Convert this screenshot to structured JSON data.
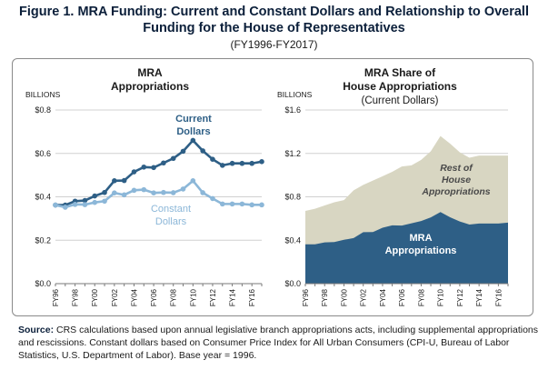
{
  "figure": {
    "title": "Figure 1. MRA Funding: Current and Constant Dollars and Relationship to Overall Funding for the House of Representatives",
    "subtitle": "(FY1996-FY2017)",
    "source_label": "Source:",
    "source_text": "CRS calculations based upon annual legislative branch appropriations acts, including supplemental appropriations and rescissions. Constant dollars based on Consumer Price Index for All Urban Consumers (CPI-U, Bureau of Labor Statistics, U.S. Department of Labor). Base year = 1996."
  },
  "chart_data": [
    {
      "type": "line",
      "title": "MRA Appropriations",
      "ylabel": "BILLIONS",
      "ylim": [
        0,
        0.8
      ],
      "yticks": [
        "$0.0",
        "$0.2",
        "$0.4",
        "$0.6",
        "$0.8"
      ],
      "x": [
        "FY96",
        "FY97",
        "FY98",
        "FY99",
        "FY00",
        "FY01",
        "FY02",
        "FY03",
        "FY04",
        "FY05",
        "FY06",
        "FY07",
        "FY08",
        "FY09",
        "FY10",
        "FY11",
        "FY12",
        "FY13",
        "FY14",
        "FY15",
        "FY16",
        "FY17"
      ],
      "xtick_labels": [
        "FY96",
        "FY98",
        "FY00",
        "FY02",
        "FY04",
        "FY06",
        "FY08",
        "FY10",
        "FY12",
        "FY14",
        "FY16"
      ],
      "series": [
        {
          "name": "Current Dollars",
          "color": "#2e5f86",
          "values": [
            0.362,
            0.362,
            0.38,
            0.383,
            0.404,
            0.42,
            0.474,
            0.475,
            0.515,
            0.537,
            0.535,
            0.556,
            0.577,
            0.61,
            0.66,
            0.612,
            0.573,
            0.545,
            0.554,
            0.554,
            0.554,
            0.562
          ]
        },
        {
          "name": "Constant Dollars",
          "color": "#8cb7d8",
          "values": [
            0.362,
            0.352,
            0.365,
            0.364,
            0.374,
            0.38,
            0.418,
            0.409,
            0.43,
            0.433,
            0.418,
            0.42,
            0.419,
            0.436,
            0.474,
            0.419,
            0.392,
            0.367,
            0.367,
            0.367,
            0.363,
            0.363
          ]
        }
      ]
    },
    {
      "type": "area",
      "title": "MRA Share of House Appropriations",
      "subtitle": "(Current Dollars)",
      "ylabel": "BILLIONS",
      "ylim": [
        0,
        1.6
      ],
      "yticks": [
        "$0.0",
        "$0.4",
        "$0.8",
        "$1.2",
        "$1.6"
      ],
      "x": [
        "FY96",
        "FY97",
        "FY98",
        "FY99",
        "FY00",
        "FY01",
        "FY02",
        "FY03",
        "FY04",
        "FY05",
        "FY06",
        "FY07",
        "FY08",
        "FY09",
        "FY10",
        "FY11",
        "FY12",
        "FY13",
        "FY14",
        "FY15",
        "FY16",
        "FY17"
      ],
      "xtick_labels": [
        "FY96",
        "FY98",
        "FY00",
        "FY02",
        "FY04",
        "FY06",
        "FY08",
        "FY10",
        "FY12",
        "FY14",
        "FY16"
      ],
      "series": [
        {
          "name": "MRA Appropriations",
          "color": "#2e5f86",
          "values": [
            0.362,
            0.362,
            0.38,
            0.383,
            0.404,
            0.42,
            0.474,
            0.475,
            0.515,
            0.537,
            0.535,
            0.556,
            0.577,
            0.61,
            0.66,
            0.612,
            0.573,
            0.545,
            0.554,
            0.554,
            0.554,
            0.562
          ]
        },
        {
          "name": "Rest of House Appropriations",
          "color": "#d8d6c2",
          "total_values": [
            0.67,
            0.69,
            0.72,
            0.75,
            0.77,
            0.86,
            0.91,
            0.95,
            0.99,
            1.03,
            1.08,
            1.09,
            1.14,
            1.22,
            1.36,
            1.29,
            1.21,
            1.16,
            1.18,
            1.18,
            1.18,
            1.18
          ]
        }
      ]
    }
  ]
}
